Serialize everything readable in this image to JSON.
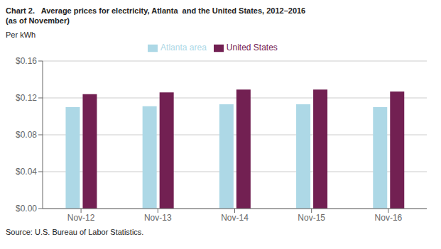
{
  "chart_data": {
    "type": "bar",
    "title": "Chart 2.   Average prices for electricity, Atlanta  and the United States, 2012–2016",
    "subtitle": "(as of November)",
    "ylabel": "Per kWh",
    "annotations": [
      "Source: U.S. Bureau of Labor Statistics."
    ],
    "categories": [
      "Nov-12",
      "Nov-13",
      "Nov-14",
      "Nov-15",
      "Nov-16"
    ],
    "series": [
      {
        "name": "Atlanta area",
        "color": "#add8e6",
        "values": [
          0.11,
          0.111,
          0.113,
          0.113,
          0.11
        ]
      },
      {
        "name": "United States",
        "color": "#722052",
        "values": [
          0.124,
          0.126,
          0.129,
          0.129,
          0.127
        ]
      }
    ],
    "ylim": [
      0.0,
      0.16
    ],
    "yticks": [
      {
        "value": 0.0,
        "label": "$0.00"
      },
      {
        "value": 0.04,
        "label": "$0.04"
      },
      {
        "value": 0.08,
        "label": "$0.08"
      },
      {
        "value": 0.12,
        "label": "$0.12"
      },
      {
        "value": 0.16,
        "label": "$0.16"
      }
    ],
    "grid": true,
    "legend": "top"
  }
}
